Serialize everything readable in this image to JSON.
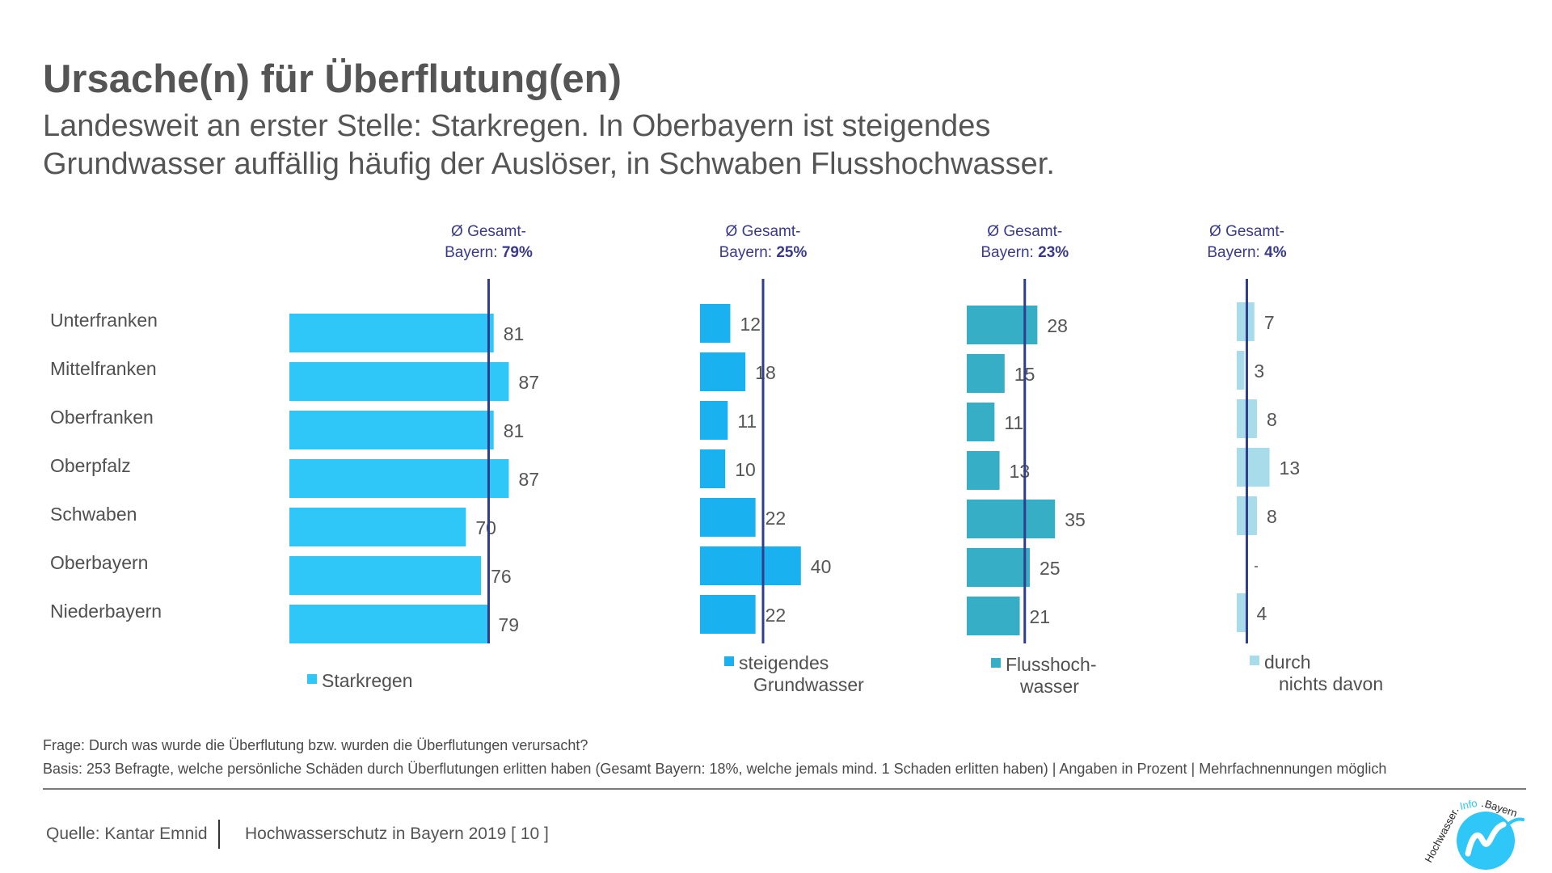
{
  "title": "Ursache(n) für Überflutung(en)",
  "subtitle_line1": "Landesweit an erster Stelle: Starkregen. In Oberbayern ist steigendes",
  "subtitle_line2": "Grundwasser auffällig häufig der Auslöser, in Schwaben Flusshochwasser.",
  "chart_data": {
    "type": "bar",
    "orientation": "horizontal",
    "categories": [
      "Unterfranken",
      "Mittelfranken",
      "Oberfranken",
      "Oberpfalz",
      "Schwaben",
      "Oberbayern",
      "Niederbayern"
    ],
    "series": [
      {
        "name": "Starkregen",
        "legend_lines": [
          "Starkregen"
        ],
        "values": [
          81,
          87,
          81,
          87,
          70,
          76,
          79
        ],
        "color": "#2ec7f7",
        "average_label": [
          "Ø Gesamt-",
          "Bayern: ",
          "79%"
        ],
        "average": 79
      },
      {
        "name": "steigendes Grundwasser",
        "legend_lines": [
          "steigendes",
          "Grundwasser"
        ],
        "values": [
          12,
          18,
          11,
          10,
          22,
          40,
          22
        ],
        "color": "#19b1ef",
        "average_label": [
          "Ø Gesamt-",
          "Bayern: ",
          "25%"
        ],
        "average": 25
      },
      {
        "name": "Flusshoch-wasser",
        "legend_lines": [
          "Flusshoch-",
          "wasser"
        ],
        "values": [
          28,
          15,
          11,
          13,
          35,
          25,
          21
        ],
        "color": "#35aec6",
        "average_label": [
          "Ø Gesamt-",
          "Bayern: ",
          "23%"
        ],
        "average": 23
      },
      {
        "name": "durch nichts davon",
        "legend_lines": [
          "durch",
          "nichts davon"
        ],
        "values": [
          7,
          3,
          8,
          13,
          8,
          null,
          4
        ],
        "color": "#a8dcea",
        "average_label": [
          "Ø Gesamt-",
          "Bayern: ",
          "4%"
        ],
        "average": 4
      }
    ],
    "average_line_color": "#2f3d8c",
    "unit": "Angaben in Prozent"
  },
  "footnote_question": "Frage: Durch was wurde die Überflutung bzw. wurden die Überflutungen verursacht?",
  "footnote_basis": "Basis: 253 Befragte, welche persönliche Schäden durch Überflutungen erlitten haben (Gesamt Bayern: 18%, welche jemals mind. 1 Schaden erlitten haben)  |  Angaben in Prozent  |  Mehrfachnennungen möglich",
  "source": "Quelle: Kantar Emnid",
  "publication": "Hochwasserschutz in Bayern 2019 [ 10 ]",
  "logo": {
    "text_hochwasser": "Hochwasser",
    "text_info": "Info",
    "text_bayern": "Bayern",
    "separator1": ".",
    "separator2": ".",
    "icon": "wave-logo-icon",
    "color": "#2ec7f7"
  }
}
